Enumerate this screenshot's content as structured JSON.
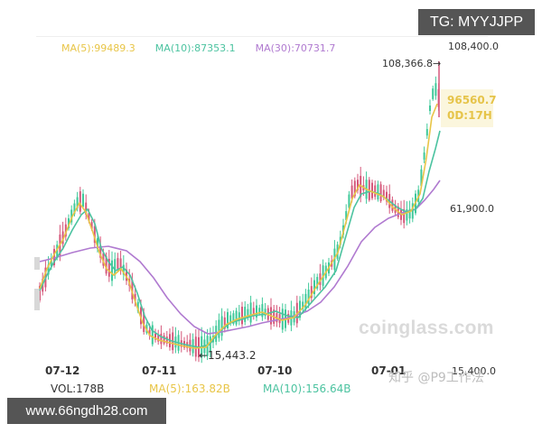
{
  "badges": {
    "telegram": "TG: MYYJJPP",
    "website": "www.66ngdh28.com"
  },
  "legend": {
    "ma5": {
      "label": "MA(5):99489.3",
      "color": "#e8c547"
    },
    "ma10": {
      "label": "MA(10):87353.1",
      "color": "#4cc3a0"
    },
    "ma30": {
      "label": "MA(30):70731.7",
      "color": "#b07ad0"
    }
  },
  "y_axis": {
    "top": "108,400.0",
    "mid": "61,900.0",
    "bottom": "15,400.0"
  },
  "annotations": {
    "high": "108,366.8→",
    "low": "←15,443.2",
    "current_price": "96560.7",
    "countdown": "0D:17H"
  },
  "x_axis": [
    "07-12",
    "07-11",
    "07-10",
    "07-01"
  ],
  "volume": {
    "vol": "VOL:178B",
    "ma5": "MA(5):163.82B",
    "ma10": "MA(10):156.64B"
  },
  "watermarks": {
    "coinglass": "coinglass.com",
    "zhihu": "知乎 @P9工作法"
  },
  "colors": {
    "up": "#3fc99a",
    "down": "#d5577a",
    "ma5": "#e8c547",
    "ma10": "#4cc3a0",
    "ma30": "#b07ad0"
  },
  "chart_data": {
    "type": "candlestick",
    "title": "",
    "y_axis_labels": [
      "108,400.0",
      "61,900.0",
      "15,400.0"
    ],
    "ylim": [
      15400,
      108400
    ],
    "x_tick_labels": [
      "07-12",
      "07-11",
      "07-10",
      "07-01"
    ],
    "legend": [
      "MA(5):99489.3",
      "MA(10):87353.1",
      "MA(30):70731.7"
    ],
    "series": [
      {
        "name": "MA(5)",
        "last": 99489.3
      },
      {
        "name": "MA(10)",
        "last": 87353.1
      },
      {
        "name": "MA(30)",
        "last": 70731.7
      }
    ],
    "approx_close_path": [
      {
        "x": "07-12 start",
        "y": 28000
      },
      {
        "x": "peak",
        "y": 68000
      },
      {
        "x": "07-11",
        "y": 24000
      },
      {
        "x": "low",
        "y": 15443.2
      },
      {
        "x": "07-10",
        "y": 29000
      },
      {
        "x": "rally",
        "y": 70000
      },
      {
        "x": "07-01",
        "y": 60000
      },
      {
        "x": "high",
        "y": 108366.8
      },
      {
        "x": "current",
        "y": 96560.7
      }
    ],
    "annotations": [
      "108,366.8 (high)",
      "15,443.2 (low)",
      "96560.7 current",
      "0D:17H"
    ],
    "volume": {
      "vol": "178B",
      "ma5": "163.82B",
      "ma10": "156.64B"
    },
    "grid": false,
    "legend_position": "top"
  }
}
